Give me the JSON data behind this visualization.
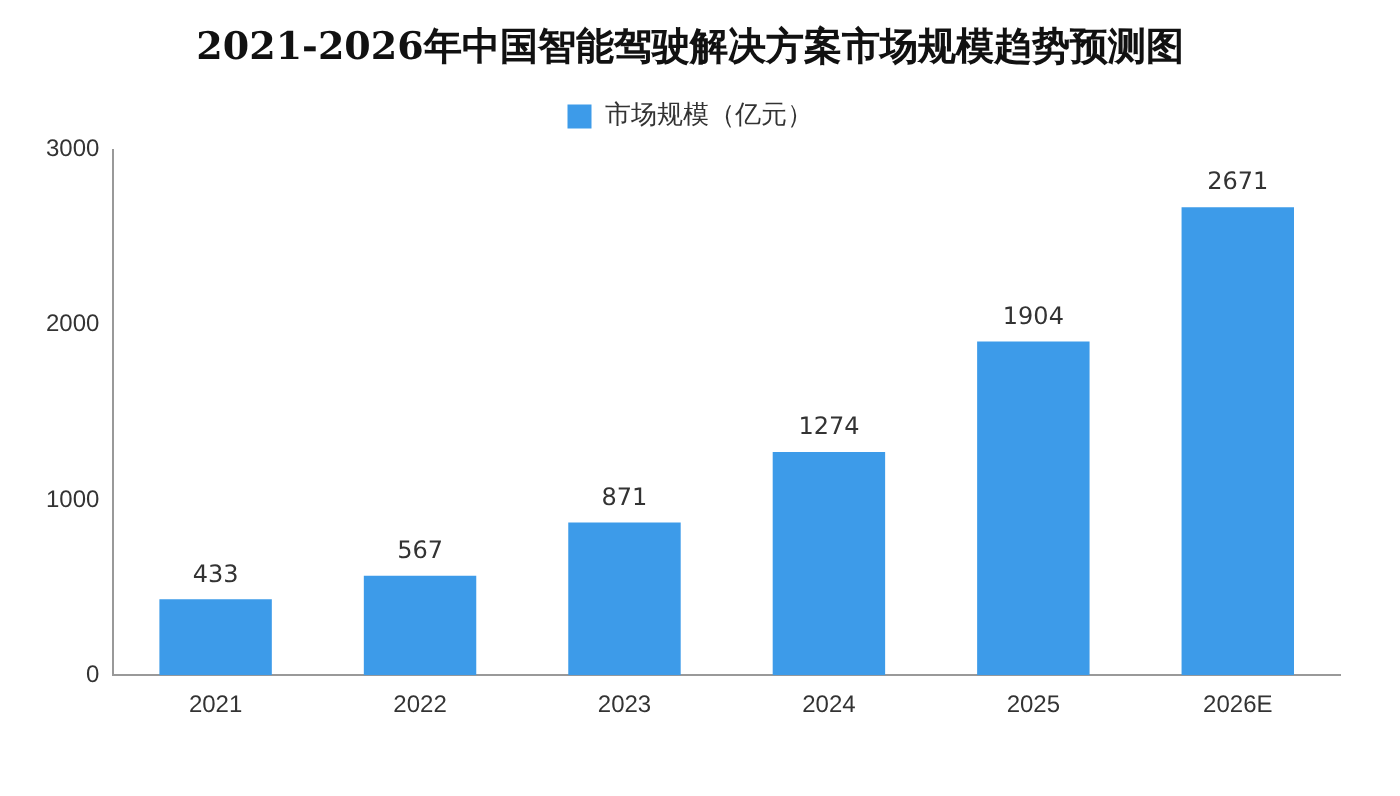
{
  "chart_data": {
    "type": "bar",
    "title": "2021-2026年中国智能驾驶解决方案市场规模趋势预测图",
    "categories": [
      "2021",
      "2022",
      "2023",
      "2024",
      "2025",
      "2026E"
    ],
    "series": [
      {
        "name": "市场规模（亿元）",
        "color": "#3d9be9",
        "values": [
          433,
          567,
          871,
          1274,
          1904,
          2671
        ]
      }
    ],
    "ylim": [
      0,
      3000
    ],
    "yticks": [
      0,
      1000,
      2000,
      3000
    ],
    "grid": false,
    "legend": "top",
    "data_labels": true
  }
}
